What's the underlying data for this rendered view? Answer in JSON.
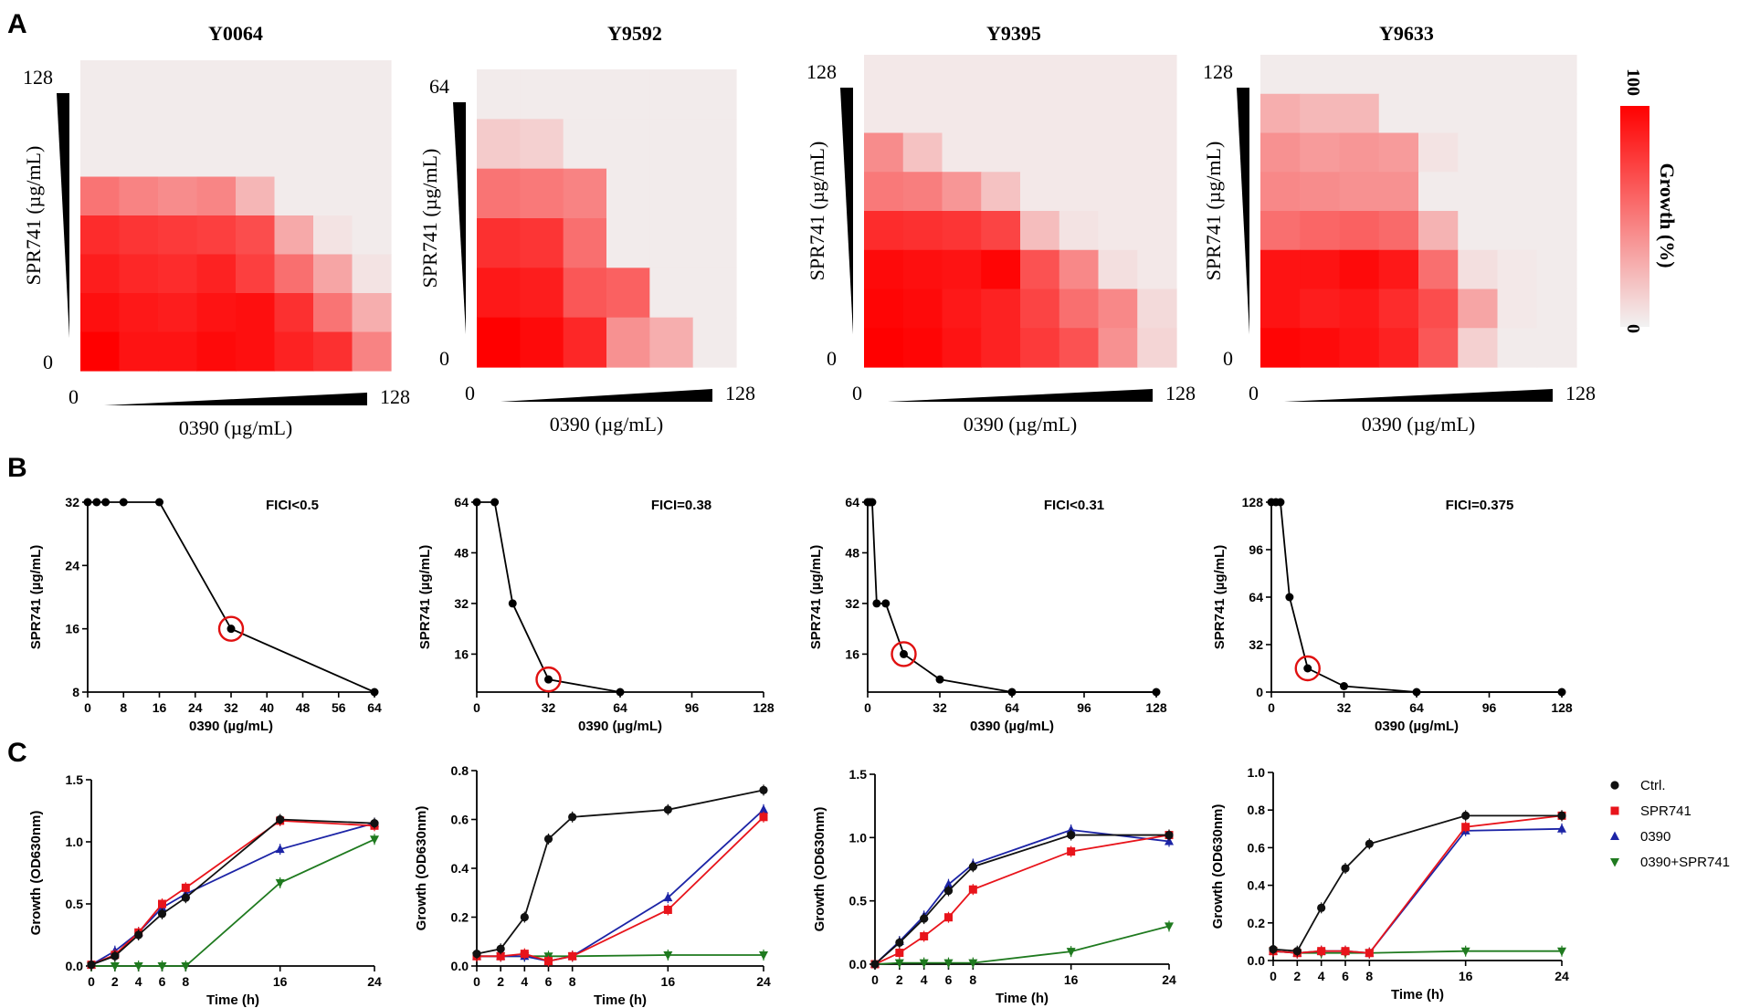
{
  "panel_labels": {
    "a": "A",
    "b": "B",
    "c": "C"
  },
  "colors": {
    "heat_max": "#ff0000",
    "heat_min": "#f2f2f2",
    "ctrl": "#111111",
    "spr741": "#e8141b",
    "c0390": "#1c24a6",
    "combo": "#1f7a1f",
    "circle": "#e01010"
  },
  "colorbar": {
    "max_label": "100",
    "min_label": "0",
    "title": "Growth (%)"
  },
  "chart_data": [
    {
      "type": "heatmap",
      "panel": "A",
      "title": "Y0064",
      "xlabel": "0390 (µg/mL)",
      "ylabel": "SPR741 (µg/mL)",
      "x_min_label": "0",
      "x_max_label": "128",
      "y_min_label": "0",
      "y_max_label": "128",
      "rows_top_to_bottom": [
        [
          3,
          3,
          3,
          3,
          3,
          3,
          3,
          3
        ],
        [
          3,
          3,
          3,
          3,
          3,
          3,
          3,
          3
        ],
        [
          3,
          3,
          3,
          3,
          3,
          3,
          3,
          3
        ],
        [
          52,
          46,
          42,
          45,
          25,
          3,
          3,
          3
        ],
        [
          82,
          78,
          76,
          74,
          68,
          30,
          6,
          3
        ],
        [
          88,
          84,
          82,
          86,
          74,
          54,
          32,
          6
        ],
        [
          94,
          90,
          88,
          92,
          94,
          80,
          52,
          28
        ],
        [
          100,
          92,
          92,
          96,
          94,
          86,
          80,
          46
        ]
      ]
    },
    {
      "type": "heatmap",
      "panel": "A",
      "title": "Y9592",
      "xlabel": "0390 (µg/mL)",
      "ylabel": "SPR741 (µg/mL)",
      "x_min_label": "0",
      "x_max_label": "128",
      "y_min_label": "0",
      "y_max_label": "64",
      "rows_top_to_bottom": [
        [
          3,
          3,
          3,
          3,
          3,
          3
        ],
        [
          16,
          14,
          3,
          3,
          3,
          3
        ],
        [
          52,
          50,
          46,
          3,
          3,
          3
        ],
        [
          80,
          78,
          54,
          3,
          3,
          3
        ],
        [
          90,
          88,
          64,
          60,
          3,
          3
        ],
        [
          100,
          96,
          84,
          40,
          28,
          3
        ]
      ]
    },
    {
      "type": "heatmap",
      "panel": "A",
      "title": "Y9395",
      "xlabel": "0390 (µg/mL)",
      "ylabel": "SPR741 (µg/mL)",
      "x_min_label": "0",
      "x_max_label": "128",
      "y_min_label": "0",
      "y_max_label": "128",
      "rows_top_to_bottom": [
        [
          4,
          4,
          4,
          4,
          4,
          4,
          4,
          4
        ],
        [
          4,
          4,
          4,
          4,
          4,
          4,
          4,
          4
        ],
        [
          42,
          20,
          4,
          4,
          4,
          4,
          4,
          4
        ],
        [
          50,
          48,
          38,
          20,
          4,
          4,
          4,
          4
        ],
        [
          82,
          80,
          78,
          72,
          22,
          6,
          4,
          4
        ],
        [
          96,
          94,
          92,
          98,
          66,
          44,
          8,
          4
        ],
        [
          98,
          96,
          90,
          86,
          72,
          54,
          44,
          10
        ],
        [
          100,
          98,
          92,
          86,
          76,
          66,
          40,
          12
        ]
      ]
    },
    {
      "type": "heatmap",
      "panel": "A",
      "title": "Y9633",
      "xlabel": "0390 (µg/mL)",
      "ylabel": "SPR741 (µg/mL)",
      "x_min_label": "0",
      "x_max_label": "128",
      "y_min_label": "0",
      "y_max_label": "128",
      "rows_top_to_bottom": [
        [
          3,
          3,
          3,
          3,
          3,
          3,
          3,
          3
        ],
        [
          28,
          24,
          24,
          3,
          3,
          3,
          3,
          3
        ],
        [
          40,
          36,
          38,
          36,
          6,
          3,
          3,
          3
        ],
        [
          44,
          42,
          40,
          40,
          3,
          3,
          3,
          3
        ],
        [
          54,
          58,
          60,
          56,
          26,
          3,
          3,
          3
        ],
        [
          92,
          92,
          96,
          90,
          54,
          8,
          4,
          3
        ],
        [
          92,
          88,
          90,
          82,
          68,
          32,
          4,
          3
        ],
        [
          98,
          96,
          92,
          86,
          64,
          14,
          3,
          3
        ]
      ]
    },
    {
      "type": "line",
      "panel": "B",
      "annotation": "FICI<0.5",
      "xlabel": "0390 (µg/mL)",
      "ylabel": "SPR741 (µg/mL)",
      "xlim": [
        0,
        64
      ],
      "ylim": [
        8,
        32
      ],
      "xticks": [
        0,
        8,
        16,
        24,
        32,
        40,
        48,
        56,
        64
      ],
      "yticks": [
        8,
        16,
        24,
        32
      ],
      "x": [
        0,
        2,
        4,
        8,
        16,
        32,
        64
      ],
      "y": [
        32,
        32,
        32,
        32,
        32,
        16,
        8
      ],
      "circled_point": [
        32,
        16
      ]
    },
    {
      "type": "line",
      "panel": "B",
      "annotation": "FICI=0.38",
      "xlabel": "0390 (µg/mL)",
      "ylabel": "SPR741 (µg/mL)",
      "xlim": [
        0,
        128
      ],
      "ylim": [
        4,
        64
      ],
      "xticks": [
        0,
        32,
        64,
        96,
        128
      ],
      "yticks": [
        16,
        32,
        48,
        64
      ],
      "x": [
        0,
        8,
        16,
        32,
        64
      ],
      "y": [
        64,
        64,
        32,
        8,
        4
      ],
      "circled_point": [
        32,
        8
      ]
    },
    {
      "type": "line",
      "panel": "B",
      "annotation": "FICI<0.31",
      "xlabel": "0390 (µg/mL)",
      "ylabel": "SPR741 (µg/mL)",
      "xlim": [
        0,
        128
      ],
      "ylim": [
        4,
        64
      ],
      "xticks": [
        0,
        32,
        64,
        96,
        128
      ],
      "yticks": [
        16,
        32,
        48,
        64
      ],
      "x": [
        0,
        1,
        2,
        4,
        8,
        16,
        32,
        64,
        128
      ],
      "y": [
        64,
        64,
        64,
        32,
        32,
        16,
        8,
        4,
        4
      ],
      "circled_point": [
        16,
        16
      ]
    },
    {
      "type": "line",
      "panel": "B",
      "annotation": "FICI=0.375",
      "xlabel": "0390 (µg/mL)",
      "ylabel": "SPR741 (µg/mL)",
      "xlim": [
        0,
        128
      ],
      "ylim": [
        0,
        128
      ],
      "xticks": [
        0,
        32,
        64,
        96,
        128
      ],
      "yticks": [
        0,
        32,
        64,
        96,
        128
      ],
      "x": [
        0,
        2,
        4,
        8,
        16,
        32,
        64,
        128
      ],
      "y": [
        128,
        128,
        128,
        64,
        16,
        4,
        0,
        0
      ],
      "circled_point": [
        16,
        16
      ]
    },
    {
      "type": "line",
      "panel": "C",
      "xlabel": "Time (h)",
      "ylabel": "Growth (OD630nm)",
      "xlim": [
        0,
        24
      ],
      "ylim": [
        0,
        1.5
      ],
      "xticks": [
        0,
        2,
        4,
        6,
        8,
        16,
        24
      ],
      "yticks": [
        0.0,
        0.5,
        1.0,
        1.5
      ],
      "x": [
        0,
        2,
        4,
        6,
        8,
        16,
        24
      ],
      "series": [
        {
          "name": "Ctrl.",
          "values": [
            0.01,
            0.08,
            0.25,
            0.42,
            0.55,
            1.18,
            1.15
          ]
        },
        {
          "name": "SPR741",
          "values": [
            0.01,
            0.09,
            0.27,
            0.5,
            0.63,
            1.17,
            1.13
          ]
        },
        {
          "name": "0390",
          "values": [
            0.01,
            0.12,
            0.27,
            0.47,
            0.58,
            0.94,
            1.15
          ]
        },
        {
          "name": "0390+SPR741",
          "values": [
            0.0,
            0.0,
            0.0,
            0.0,
            0.0,
            0.67,
            1.02
          ]
        }
      ]
    },
    {
      "type": "line",
      "panel": "C",
      "xlabel": "Time (h)",
      "ylabel": "Growth (OD630nm)",
      "xlim": [
        0,
        24
      ],
      "ylim": [
        0,
        0.8
      ],
      "xticks": [
        0,
        2,
        4,
        6,
        8,
        16,
        24
      ],
      "yticks": [
        0.0,
        0.2,
        0.4,
        0.6,
        0.8
      ],
      "x": [
        0,
        2,
        4,
        6,
        8,
        16,
        24
      ],
      "series": [
        {
          "name": "Ctrl.",
          "values": [
            0.05,
            0.07,
            0.2,
            0.52,
            0.61,
            0.64,
            0.72
          ]
        },
        {
          "name": "SPR741",
          "values": [
            0.04,
            0.04,
            0.05,
            0.02,
            0.04,
            0.23,
            0.61
          ]
        },
        {
          "name": "0390",
          "values": [
            0.04,
            0.04,
            0.04,
            0.02,
            0.04,
            0.28,
            0.64
          ]
        },
        {
          "name": "0390+SPR741",
          "values": [
            0.04,
            0.04,
            0.04,
            0.04,
            0.04,
            0.045,
            0.045
          ]
        }
      ]
    },
    {
      "type": "line",
      "panel": "C",
      "xlabel": "Time (h)",
      "ylabel": "Growth (OD630nm)",
      "xlim": [
        0,
        24
      ],
      "ylim": [
        0,
        1.5
      ],
      "xticks": [
        0,
        2,
        4,
        6,
        8,
        16,
        24
      ],
      "yticks": [
        0.0,
        0.5,
        1.0,
        1.5
      ],
      "x": [
        0,
        2,
        4,
        6,
        8,
        16,
        24
      ],
      "series": [
        {
          "name": "Ctrl.",
          "values": [
            0.0,
            0.17,
            0.36,
            0.58,
            0.77,
            1.02,
            1.02
          ]
        },
        {
          "name": "SPR741",
          "values": [
            0.0,
            0.09,
            0.22,
            0.37,
            0.59,
            0.89,
            1.02
          ]
        },
        {
          "name": "0390",
          "values": [
            0.0,
            0.18,
            0.38,
            0.63,
            0.79,
            1.06,
            0.97
          ]
        },
        {
          "name": "0390+SPR741",
          "values": [
            0.0,
            0.01,
            0.01,
            0.01,
            0.01,
            0.1,
            0.3
          ]
        }
      ]
    },
    {
      "type": "line",
      "panel": "C",
      "xlabel": "Time (h)",
      "ylabel": "Growth (OD630nm)",
      "xlim": [
        0,
        24
      ],
      "ylim": [
        0,
        1.0
      ],
      "xticks": [
        0,
        2,
        4,
        6,
        8,
        16,
        24
      ],
      "yticks": [
        0.0,
        0.2,
        0.4,
        0.6,
        0.8,
        1.0
      ],
      "x": [
        0,
        2,
        4,
        6,
        8,
        16,
        24
      ],
      "series": [
        {
          "name": "Ctrl.",
          "values": [
            0.06,
            0.05,
            0.28,
            0.49,
            0.62,
            0.77,
            0.77
          ]
        },
        {
          "name": "SPR741",
          "values": [
            0.05,
            0.04,
            0.05,
            0.05,
            0.04,
            0.71,
            0.77
          ]
        },
        {
          "name": "0390",
          "values": [
            0.05,
            0.04,
            0.05,
            0.05,
            0.04,
            0.69,
            0.7
          ]
        },
        {
          "name": "0390+SPR741",
          "values": [
            0.05,
            0.04,
            0.04,
            0.04,
            0.04,
            0.05,
            0.05
          ]
        }
      ]
    }
  ]
}
